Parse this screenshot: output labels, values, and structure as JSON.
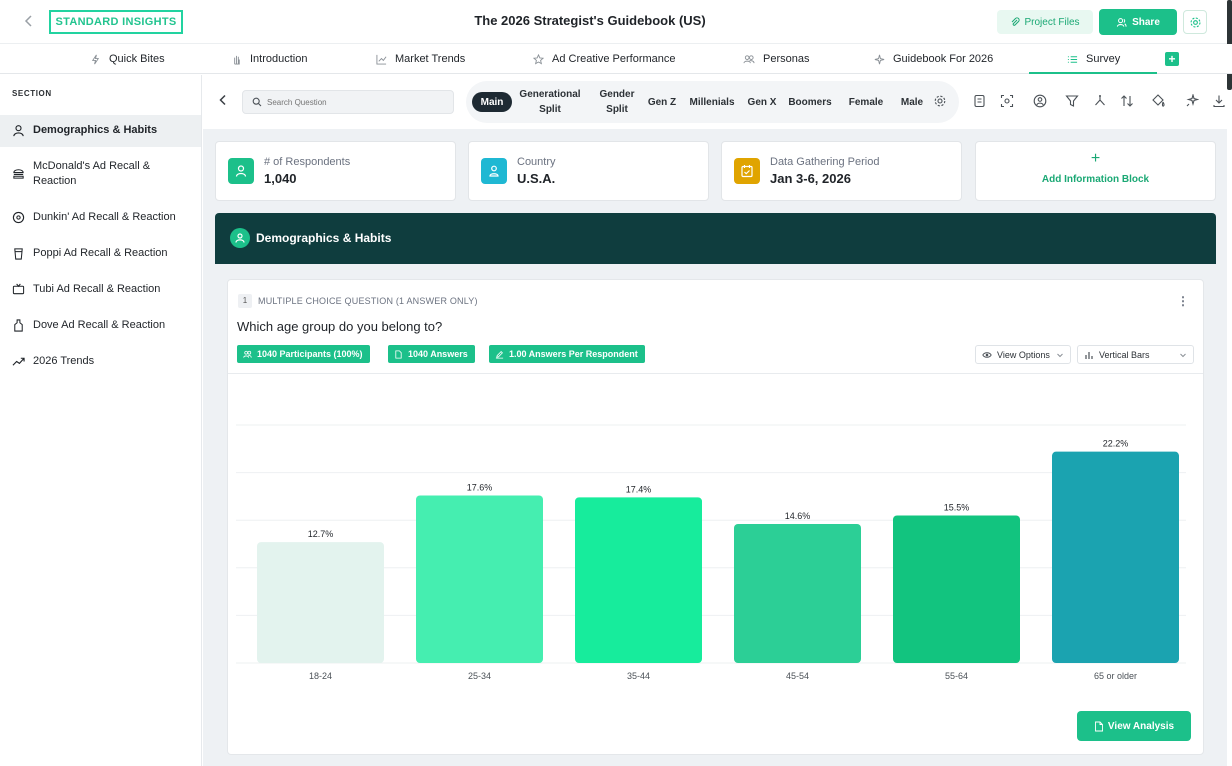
{
  "header": {
    "logo": "STANDARD INSIGHTS",
    "title": "The 2026 Strategist's Guidebook (US)",
    "project_files": "Project Files",
    "share": "Share"
  },
  "tabs": [
    {
      "label": "Quick Bites",
      "icon": "bolt-icon"
    },
    {
      "label": "Introduction",
      "icon": "hand-icon"
    },
    {
      "label": "Market Trends",
      "icon": "chart-line-icon"
    },
    {
      "label": "Ad Creative Performance",
      "icon": "star-icon"
    },
    {
      "label": "Personas",
      "icon": "users-icon"
    },
    {
      "label": "Guidebook For 2026",
      "icon": "sparkle-icon"
    },
    {
      "label": "Survey",
      "icon": "list-icon",
      "active": true
    }
  ],
  "sidebar": {
    "heading": "SECTION",
    "items": [
      {
        "label": "Demographics & Habits",
        "icon": "user-icon",
        "active": true
      },
      {
        "label": "McDonald's Ad Recall & Reaction",
        "icon": "burger-icon"
      },
      {
        "label": "Dunkin' Ad Recall & Reaction",
        "icon": "donut-icon"
      },
      {
        "label": "Poppi Ad Recall & Reaction",
        "icon": "cup-icon"
      },
      {
        "label": "Tubi Ad Recall & Reaction",
        "icon": "tv-icon"
      },
      {
        "label": "Dove Ad Recall & Reaction",
        "icon": "bottle-icon"
      },
      {
        "label": "2026 Trends",
        "icon": "trending-up-icon"
      }
    ]
  },
  "toolbar": {
    "search_placeholder": "Search Question",
    "segments": [
      {
        "label": "Main",
        "active": true
      },
      {
        "label": "Generational Split"
      },
      {
        "label": "Gender Split"
      },
      {
        "label": "Gen Z"
      },
      {
        "label": "Millenials"
      },
      {
        "label": "Gen X"
      },
      {
        "label": "Boomers"
      },
      {
        "label": "Female"
      },
      {
        "label": "Male"
      }
    ]
  },
  "info_cards": [
    {
      "label": "# of Respondents",
      "value": "1,040",
      "icon": "user-icon",
      "color": "#1cc08a"
    },
    {
      "label": "Country",
      "value": "U.S.A.",
      "icon": "location-person-icon",
      "color": "#1fb8d3"
    },
    {
      "label": "Data Gathering Period",
      "value": "Jan 3-6, 2026",
      "icon": "calendar-icon",
      "color": "#e0a400"
    }
  ],
  "add_block": {
    "label": "Add Information Block"
  },
  "section": {
    "title": "Demographics & Habits"
  },
  "question": {
    "number": "1",
    "type": "MULTIPLE CHOICE QUESTION (1 ANSWER ONLY)",
    "text": "Which age group do you belong to?",
    "pills": [
      "1040 Participants (100%)",
      "1040 Answers",
      "1.00 Answers Per Respondent"
    ],
    "view_options": "View Options",
    "chart_type": "Vertical Bars",
    "view_analysis": "View Analysis"
  },
  "chart_data": {
    "type": "bar",
    "categories": [
      "18-24",
      "25-34",
      "35-44",
      "45-54",
      "55-64",
      "65 or older"
    ],
    "values": [
      12.7,
      17.6,
      17.4,
      14.6,
      15.5,
      22.2
    ],
    "labels": [
      "12.7%",
      "17.6%",
      "17.4%",
      "14.6%",
      "15.5%",
      "22.2%"
    ],
    "colors": [
      "#e3f3ee",
      "#45eeb0",
      "#17ec9c",
      "#2ccf96",
      "#12c47f",
      "#1ba3b0"
    ],
    "ylim": [
      0,
      25
    ],
    "grid": true
  }
}
